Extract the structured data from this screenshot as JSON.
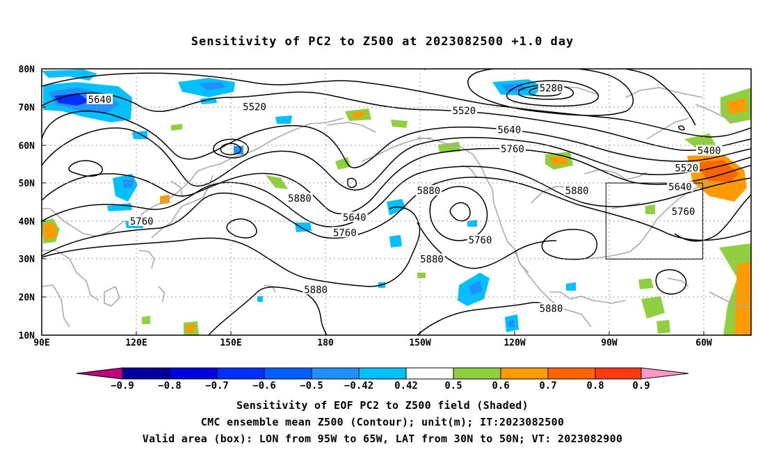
{
  "title": "Sensitivity of PC2 to Z500 at 2023082500 +1.0 day",
  "map": {
    "lat_labels": [
      "80N",
      "70N",
      "60N",
      "50N",
      "40N",
      "30N",
      "20N",
      "10N"
    ],
    "lon_labels": [
      "90E",
      "120E",
      "150E",
      "180",
      "150W",
      "120W",
      "90W",
      "60W"
    ],
    "contour_labels": [
      {
        "text": "5640",
        "lon": 108,
        "lat": 72
      },
      {
        "text": "5520",
        "lon": 156,
        "lat": 70
      },
      {
        "text": "5280",
        "lon": -112,
        "lat": 75
      },
      {
        "text": "5520",
        "lon": -139,
        "lat": 69
      },
      {
        "text": "5640",
        "lon": -125,
        "lat": 64
      },
      {
        "text": "5760",
        "lon": -124,
        "lat": 59
      },
      {
        "text": "5400",
        "lon": -63,
        "lat": 58.5
      },
      {
        "text": "5520",
        "lon": -70,
        "lat": 54
      },
      {
        "text": "5640",
        "lon": -72,
        "lat": 49
      },
      {
        "text": "5760",
        "lon": -71,
        "lat": 42.5
      },
      {
        "text": "5880",
        "lon": -104,
        "lat": 48
      },
      {
        "text": "5880",
        "lon": -150,
        "lat": 48
      },
      {
        "text": "5640",
        "lon": -173,
        "lat": 41
      },
      {
        "text": "5760",
        "lon": -176,
        "lat": 37
      },
      {
        "text": "5760",
        "lon": -134,
        "lat": 35
      },
      {
        "text": "5880",
        "lon": -149,
        "lat": 30
      },
      {
        "text": "5880",
        "lon": 170,
        "lat": 46
      },
      {
        "text": "5760",
        "lon": 121,
        "lat": 40
      },
      {
        "text": "5880",
        "lon": 175,
        "lat": 22
      },
      {
        "text": "5880",
        "lon": -112,
        "lat": 17
      }
    ],
    "box": {
      "lon_min": -95,
      "lon_max": -65,
      "lat_min": 30,
      "lat_max": 50
    }
  },
  "colorbar": {
    "labels": [
      "-0.9",
      "-0.8",
      "-0.7",
      "-0.6",
      "-0.5",
      "-0.42",
      "0.42",
      "0.5",
      "0.6",
      "0.7",
      "0.8",
      "0.9"
    ],
    "colors": [
      "#c0007f",
      "#00009f",
      "#0000e0",
      "#0030ff",
      "#0060ff",
      "#2090ff",
      "#00c0ff",
      "#ffffff",
      "#90d040",
      "#ff9a00",
      "#ff6400",
      "#ff3a10",
      "#ff0000",
      "#ff9ac8"
    ]
  },
  "captions": {
    "line1": "Sensitivity of EOF PC2 to Z500 field (Shaded)",
    "line2": "CMC ensemble mean Z500 (Contour); unit(m); IT:2023082500",
    "line3": "Valid area (box): LON from 95W to 65W, LAT from 30N to 50N; VT: 2023082900"
  }
}
